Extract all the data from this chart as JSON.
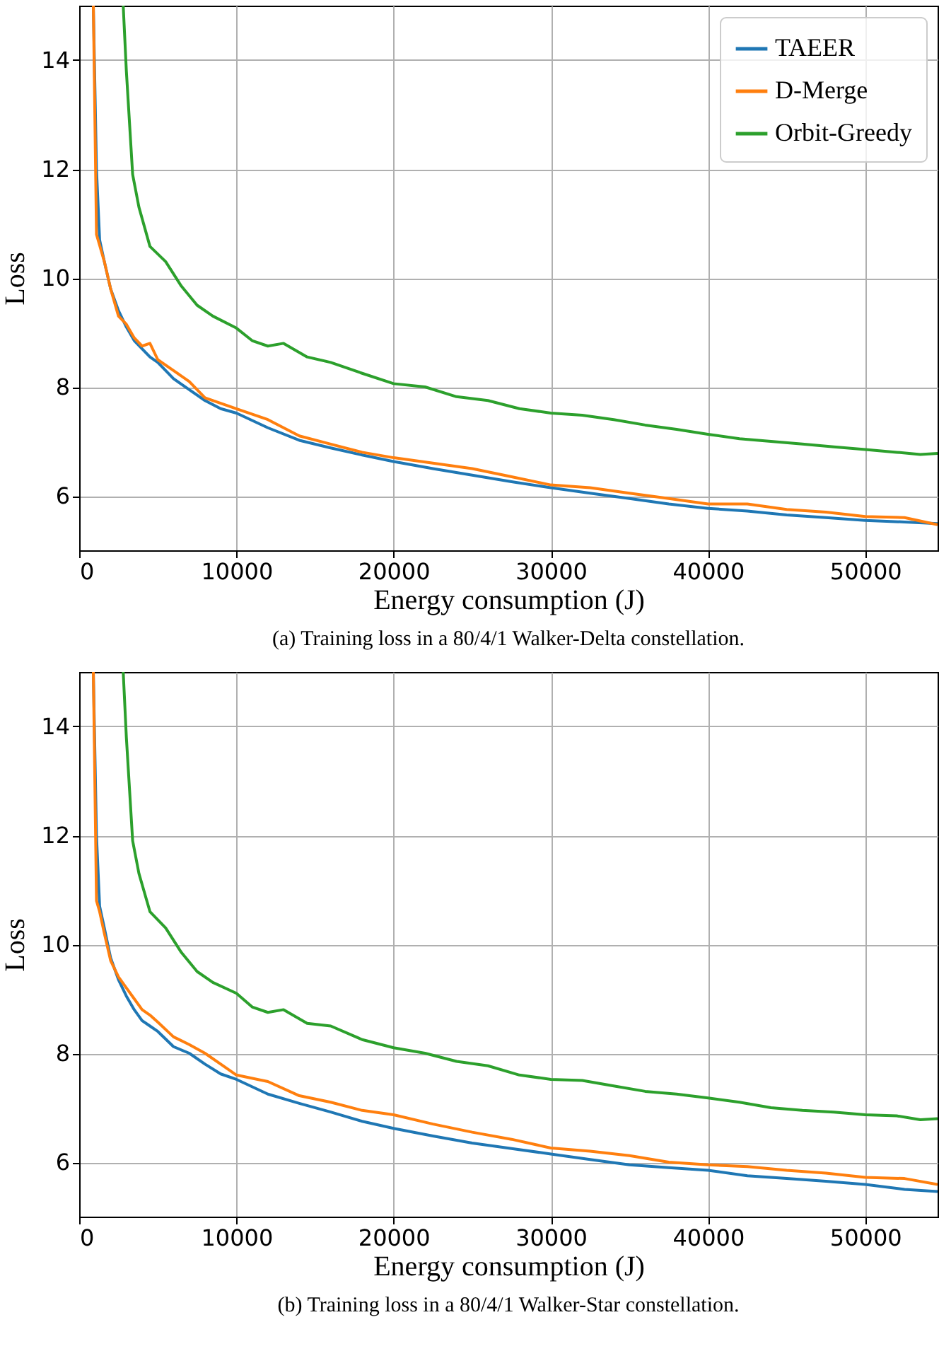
{
  "chart_data": [
    {
      "type": "line",
      "xlabel": "Energy consumption (J)",
      "ylabel": "Loss",
      "annotations": [
        "(a) Training loss in a 80/4/1 Walker-Delta constellation."
      ],
      "xlim": [
        0,
        54600
      ],
      "xticks": [
        0,
        10000,
        20000,
        30000,
        40000,
        50000
      ],
      "ylim": [
        5,
        15
      ],
      "yticks": [
        6,
        8,
        10,
        12,
        14
      ],
      "grid": true,
      "legend": "top right",
      "line_style": "solid",
      "marker": "none",
      "series": [
        {
          "name": "TAEER",
          "color": "#1f77b4",
          "x": [
            900,
            1100,
            1300,
            1600,
            2000,
            2500,
            3000,
            3500,
            4000,
            4500,
            5000,
            6000,
            7000,
            8000,
            9000,
            10000,
            12000,
            14000,
            16000,
            18000,
            20000,
            22500,
            25000,
            27500,
            30000,
            32500,
            35000,
            37500,
            40000,
            42500,
            45000,
            47500,
            50000,
            52500,
            54600
          ],
          "values": [
            15,
            12.0,
            10.7,
            10.3,
            9.8,
            9.4,
            9.1,
            8.85,
            8.7,
            8.55,
            8.45,
            8.15,
            7.95,
            7.75,
            7.6,
            7.52,
            7.25,
            7.02,
            6.88,
            6.75,
            6.63,
            6.5,
            6.38,
            6.26,
            6.15,
            6.05,
            5.95,
            5.85,
            5.77,
            5.72,
            5.65,
            5.6,
            5.55,
            5.52,
            5.49
          ]
        },
        {
          "name": "D-Merge",
          "color": "#ff7f0e",
          "x": [
            900,
            1100,
            1300,
            1600,
            2000,
            2500,
            3000,
            3500,
            4000,
            4500,
            5000,
            6000,
            7000,
            8000,
            9000,
            10000,
            12000,
            14000,
            16000,
            18000,
            20000,
            22500,
            25000,
            27500,
            30000,
            32500,
            35000,
            37500,
            40000,
            42500,
            45000,
            47500,
            50000,
            52500,
            54600
          ],
          "values": [
            15,
            10.8,
            10.6,
            10.3,
            9.8,
            9.3,
            9.15,
            8.9,
            8.75,
            8.8,
            8.5,
            8.3,
            8.1,
            7.8,
            7.7,
            7.6,
            7.4,
            7.1,
            6.95,
            6.8,
            6.7,
            6.6,
            6.5,
            6.35,
            6.2,
            6.15,
            6.05,
            5.95,
            5.85,
            5.85,
            5.75,
            5.7,
            5.62,
            5.6,
            5.47
          ]
        },
        {
          "name": "Orbit-Greedy",
          "color": "#2ca02c",
          "x": [
            2800,
            3000,
            3400,
            3800,
            4500,
            5500,
            6500,
            7500,
            8500,
            10000,
            11000,
            12000,
            13000,
            14500,
            16000,
            18000,
            20000,
            22000,
            24000,
            26000,
            28000,
            30000,
            32000,
            34000,
            36000,
            38000,
            40000,
            42000,
            44000,
            46000,
            48000,
            50000,
            52000,
            53500,
            54600
          ],
          "values": [
            15,
            13.8,
            11.9,
            11.3,
            10.58,
            10.3,
            9.85,
            9.5,
            9.3,
            9.08,
            8.85,
            8.75,
            8.8,
            8.55,
            8.45,
            8.25,
            8.06,
            8.0,
            7.82,
            7.75,
            7.6,
            7.52,
            7.48,
            7.4,
            7.3,
            7.22,
            7.13,
            7.05,
            7.0,
            6.95,
            6.9,
            6.85,
            6.8,
            6.76,
            6.78
          ]
        }
      ]
    },
    {
      "type": "line",
      "xlabel": "Energy consumption (J)",
      "ylabel": "Loss",
      "annotations": [
        "(b) Training loss in a 80/4/1 Walker-Star constellation."
      ],
      "xlim": [
        0,
        54600
      ],
      "xticks": [
        0,
        10000,
        20000,
        30000,
        40000,
        50000
      ],
      "ylim": [
        5,
        15
      ],
      "yticks": [
        6,
        8,
        10,
        12,
        14
      ],
      "grid": true,
      "legend": "top right",
      "line_style": "solid",
      "marker": "none",
      "series": [
        {
          "name": "TAEER",
          "color": "#1f77b4",
          "x": [
            900,
            1100,
            1300,
            1600,
            2000,
            2500,
            3000,
            3500,
            4000,
            4500,
            5000,
            6000,
            7000,
            8000,
            9000,
            10000,
            12000,
            14000,
            16000,
            18000,
            20000,
            22500,
            25000,
            27500,
            30000,
            32500,
            35000,
            37500,
            40000,
            42500,
            45000,
            47500,
            50000,
            52500,
            54600
          ],
          "values": [
            15,
            12.0,
            10.7,
            10.3,
            9.75,
            9.35,
            9.05,
            8.8,
            8.6,
            8.5,
            8.4,
            8.12,
            8.0,
            7.8,
            7.62,
            7.52,
            7.25,
            7.08,
            6.92,
            6.75,
            6.62,
            6.48,
            6.35,
            6.25,
            6.15,
            6.05,
            5.95,
            5.9,
            5.85,
            5.75,
            5.7,
            5.65,
            5.59,
            5.5,
            5.46
          ]
        },
        {
          "name": "D-Merge",
          "color": "#ff7f0e",
          "x": [
            900,
            1100,
            1300,
            1600,
            2000,
            2500,
            3000,
            3500,
            4000,
            4500,
            5000,
            6000,
            7000,
            8000,
            9000,
            10000,
            12000,
            14000,
            16000,
            18000,
            20000,
            22500,
            25000,
            27500,
            30000,
            32500,
            35000,
            37500,
            40000,
            42500,
            45000,
            47500,
            50000,
            52500,
            54600
          ],
          "values": [
            15,
            10.8,
            10.6,
            10.2,
            9.7,
            9.4,
            9.2,
            9.0,
            8.8,
            8.7,
            8.57,
            8.3,
            8.16,
            8.0,
            7.8,
            7.6,
            7.48,
            7.22,
            7.1,
            6.95,
            6.87,
            6.7,
            6.55,
            6.42,
            6.26,
            6.2,
            6.12,
            6.0,
            5.95,
            5.92,
            5.85,
            5.8,
            5.72,
            5.7,
            5.59
          ]
        },
        {
          "name": "Orbit-Greedy",
          "color": "#2ca02c",
          "x": [
            2800,
            3000,
            3400,
            3800,
            4500,
            5500,
            6500,
            7500,
            8500,
            10000,
            11000,
            12000,
            13000,
            14500,
            16000,
            18000,
            20000,
            22000,
            24000,
            26000,
            28000,
            30000,
            32000,
            34000,
            36000,
            38000,
            40000,
            42000,
            44000,
            46000,
            48000,
            50000,
            52000,
            53500,
            54600
          ],
          "values": [
            15,
            13.8,
            11.9,
            11.3,
            10.6,
            10.3,
            9.85,
            9.5,
            9.3,
            9.1,
            8.85,
            8.75,
            8.8,
            8.55,
            8.5,
            8.25,
            8.1,
            8.0,
            7.85,
            7.77,
            7.6,
            7.52,
            7.5,
            7.4,
            7.3,
            7.25,
            7.18,
            7.1,
            7.0,
            6.95,
            6.92,
            6.87,
            6.85,
            6.78,
            6.8
          ]
        }
      ]
    }
  ]
}
